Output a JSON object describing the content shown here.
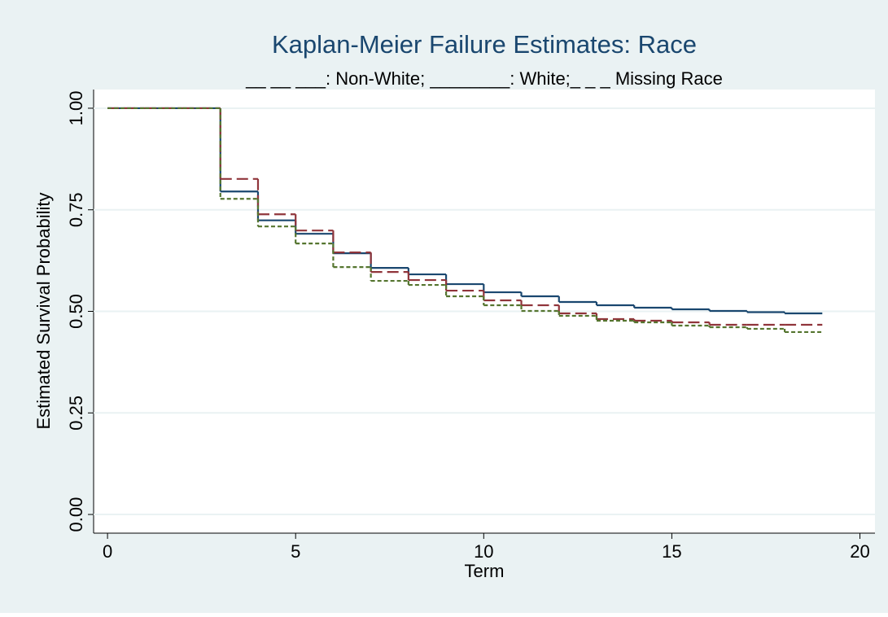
{
  "chart_data": {
    "type": "line",
    "step": true,
    "title": "Kaplan-Meier Failure Estimates: Race",
    "subtitle": "__ __ ___: Non-White; ________: White;_ _ _ Missing Race",
    "x_label": "Term",
    "y_label": "Estimated Survival Probability",
    "x": [
      0,
      1,
      2,
      3,
      4,
      5,
      6,
      7,
      8,
      9,
      10,
      11,
      12,
      13,
      14,
      15,
      16,
      17,
      18,
      19
    ],
    "series": [
      {
        "color": "#1a476f",
        "dash": "none",
        "values": [
          1.0,
          1.0,
          1.0,
          0.795,
          0.724,
          0.691,
          0.643,
          0.607,
          0.591,
          0.567,
          0.547,
          0.537,
          0.523,
          0.515,
          0.509,
          0.505,
          0.501,
          0.498,
          0.495,
          0.495
        ]
      },
      {
        "color": "#90353b",
        "dash": "14 6",
        "values": [
          1.0,
          1.0,
          1.0,
          0.826,
          0.739,
          0.699,
          0.645,
          0.597,
          0.577,
          0.551,
          0.527,
          0.515,
          0.495,
          0.481,
          0.477,
          0.473,
          0.467,
          0.467,
          0.467,
          0.467
        ]
      },
      {
        "color": "#55752f",
        "dash": "5 3",
        "values": [
          1.0,
          1.0,
          1.0,
          0.777,
          0.709,
          0.667,
          0.609,
          0.575,
          0.565,
          0.537,
          0.515,
          0.501,
          0.489,
          0.477,
          0.473,
          0.465,
          0.461,
          0.457,
          0.449,
          0.449
        ]
      }
    ],
    "xlim": [
      -0.37,
      20.4
    ],
    "ylim": [
      -0.046,
      1.046
    ],
    "xticks": [
      0,
      5,
      10,
      15,
      20
    ],
    "yticks": [
      {
        "value": 0,
        "label": "0.00"
      },
      {
        "value": 0.25,
        "label": "0.25"
      },
      {
        "value": 0.5,
        "label": "0.50"
      },
      {
        "value": 0.75,
        "label": "0.75"
      },
      {
        "value": 1,
        "label": "1.00"
      }
    ],
    "grid": true
  }
}
